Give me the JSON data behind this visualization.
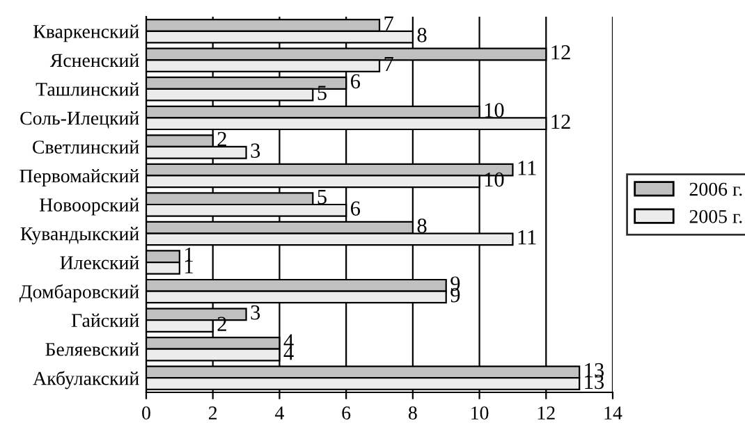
{
  "chart_data": {
    "type": "bar",
    "orientation": "horizontal",
    "categories": [
      "Кваркенский",
      "Ясненский",
      "Ташлинский",
      "Соль-Илецкий",
      "Светлинский",
      "Первомайский",
      "Новоорский",
      "Кувандыкский",
      "Илекский",
      "Домбаровский",
      "Гайский",
      "Беляевский",
      "Акбулакский"
    ],
    "series": [
      {
        "name": "2006 г.",
        "color": "#c0c0c0",
        "values": [
          7,
          12,
          6,
          10,
          2,
          11,
          5,
          8,
          1,
          9,
          3,
          4,
          13
        ]
      },
      {
        "name": "2005 г.",
        "color": "#ececec",
        "values": [
          8,
          7,
          5,
          12,
          3,
          10,
          6,
          11,
          1,
          9,
          2,
          4,
          13
        ]
      }
    ],
    "xlim": [
      0,
      14
    ],
    "xticks": [
      0,
      2,
      4,
      6,
      8,
      10,
      12,
      14
    ],
    "grid": "x",
    "legend": "right",
    "data_labels": true
  }
}
